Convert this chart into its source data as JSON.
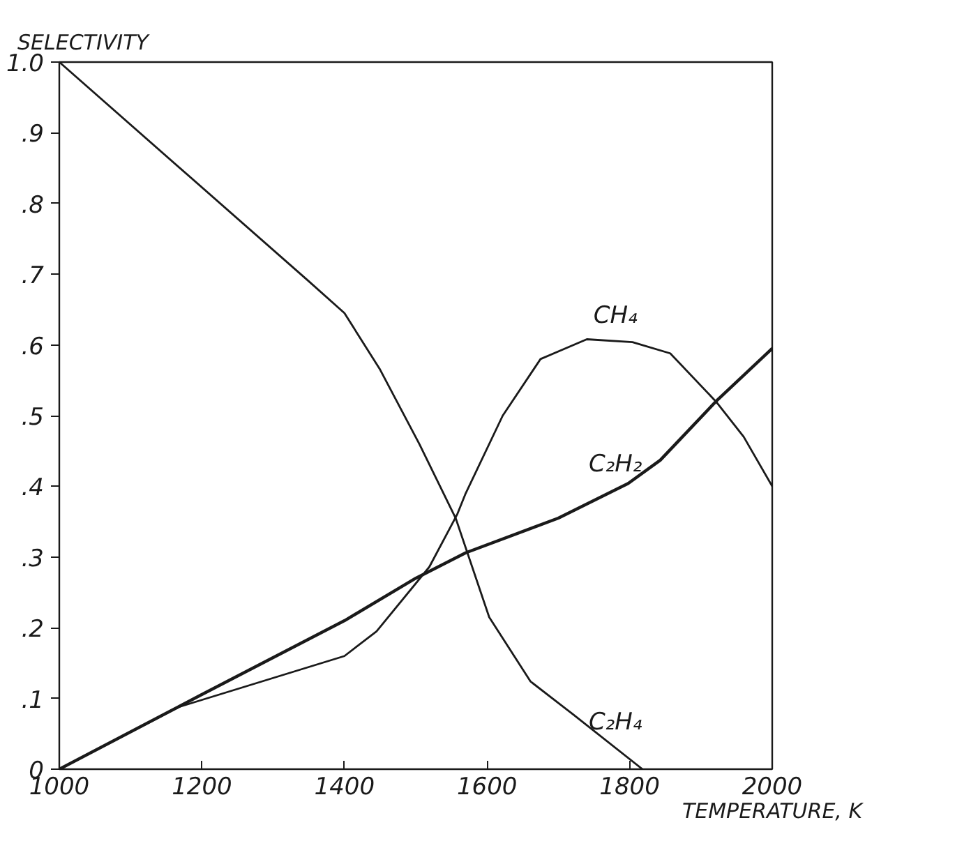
{
  "chart_data": {
    "type": "line",
    "xlabel": "TEMPERATURE, K",
    "ylabel": "SELECTIVITY",
    "xlim": [
      1000,
      2000
    ],
    "ylim": [
      0,
      1.0
    ],
    "xticks": [
      1000,
      1200,
      1400,
      1600,
      1800,
      2000
    ],
    "yticks": [
      {
        "value": 0,
        "label": "0"
      },
      {
        "value": 0.1,
        "label": ".1"
      },
      {
        "value": 0.2,
        "label": ".2"
      },
      {
        "value": 0.3,
        "label": ".3"
      },
      {
        "value": 0.4,
        "label": ".4"
      },
      {
        "value": 0.5,
        "label": ".5"
      },
      {
        "value": 0.6,
        "label": ".6"
      },
      {
        "value": 0.7,
        "label": ".7"
      },
      {
        "value": 0.8,
        "label": ".8"
      },
      {
        "value": 0.9,
        "label": ".9"
      },
      {
        "value": 1.0,
        "label": "1.0"
      }
    ],
    "grid": false,
    "marker": "none",
    "line_style": "solid",
    "series": [
      {
        "name": "C₂H₄",
        "color": "#1a1a1a",
        "x": [
          1000,
          1350,
          1400,
          1450,
          1505,
          1556,
          1603,
          1661,
          1720,
          1818
        ],
        "values": [
          1.0,
          0.69,
          0.645,
          0.565,
          0.46,
          0.355,
          0.215,
          0.124,
          0.078,
          0.0
        ]
      },
      {
        "name": "CH₄",
        "color": "#1a1a1a",
        "x": [
          1000,
          1168,
          1400,
          1445,
          1519,
          1558,
          1570,
          1622,
          1675,
          1740,
          1804,
          1857,
          1921,
          1960,
          2000
        ],
        "values": [
          0.0,
          0.088,
          0.16,
          0.195,
          0.286,
          0.36,
          0.39,
          0.5,
          0.58,
          0.608,
          0.604,
          0.588,
          0.52,
          0.47,
          0.4
        ]
      },
      {
        "name": "C₂H₂",
        "color": "#1a1a1a",
        "x": [
          1000,
          1197,
          1400,
          1500,
          1570,
          1700,
          1798,
          1843,
          1921,
          2000
        ],
        "values": [
          0.0,
          0.104,
          0.21,
          0.27,
          0.306,
          0.355,
          0.404,
          0.437,
          0.52,
          0.595
        ]
      }
    ]
  }
}
